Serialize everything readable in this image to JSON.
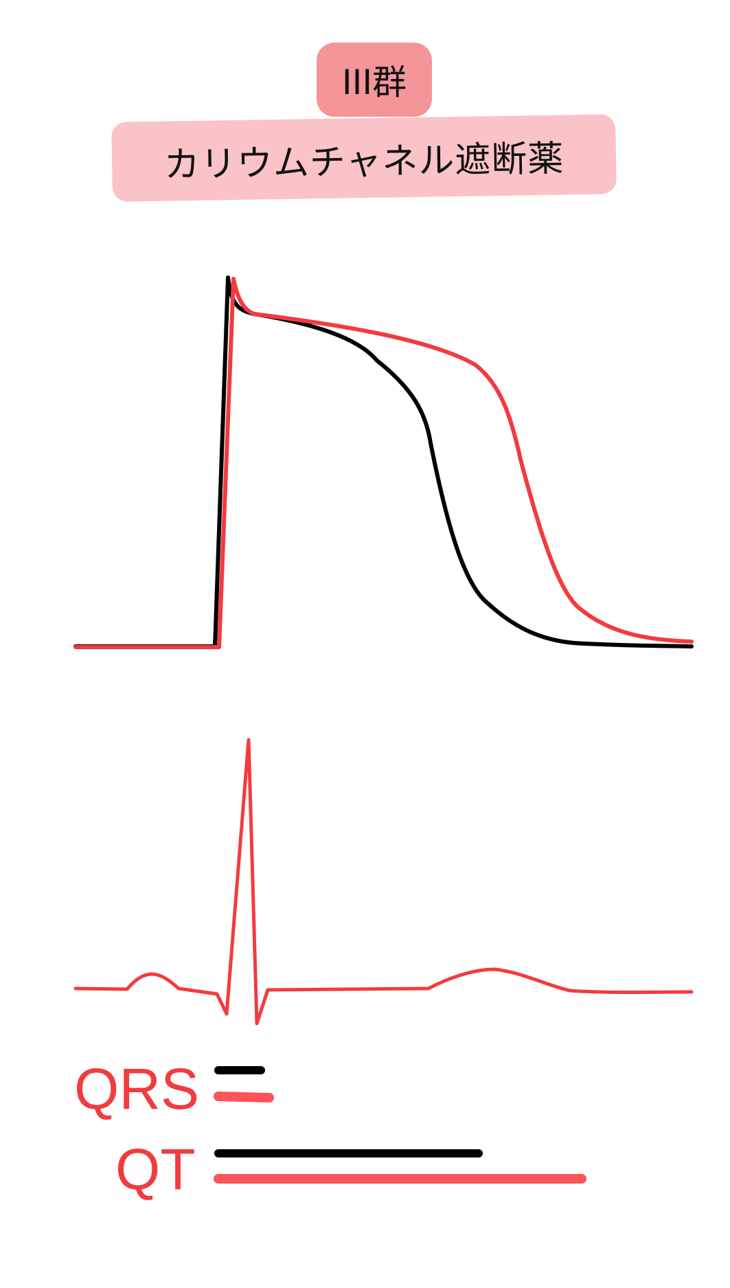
{
  "header": {
    "class_label": "III群",
    "drug_name": "カリウムチャネル遮断薬"
  },
  "colors": {
    "badge": "#f4959a",
    "banner": "#fac3c8",
    "drug": "#f23b3f",
    "baseline": "#000000",
    "label": "#f23b3f",
    "bar_red": "#fa5558"
  },
  "legend": {
    "qrs_label": "QRS",
    "qt_label": "QT",
    "qrs_change": "unchanged",
    "qt_change": "prolonged"
  }
}
